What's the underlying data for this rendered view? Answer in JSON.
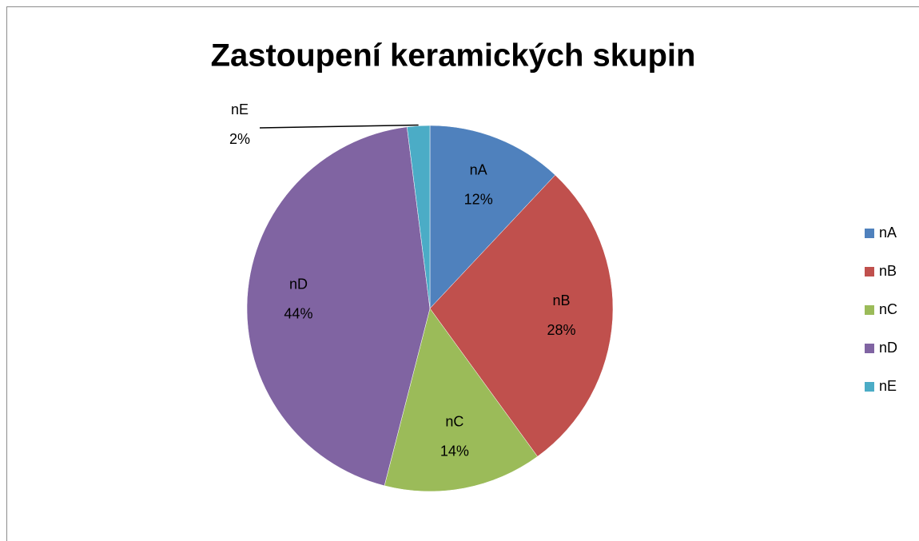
{
  "chart_data": {
    "type": "pie",
    "title": "Zastoupení keramických skupin",
    "categories": [
      "nA",
      "nB",
      "nC",
      "nD",
      "nE"
    ],
    "values": [
      12,
      28,
      14,
      44,
      2
    ],
    "value_labels": [
      "12%",
      "28%",
      "14%",
      "44%",
      "2%"
    ],
    "colors": [
      "#4f81bd",
      "#c0504d",
      "#9bbb59",
      "#8064a2",
      "#4bacc6"
    ],
    "legend": "right"
  }
}
